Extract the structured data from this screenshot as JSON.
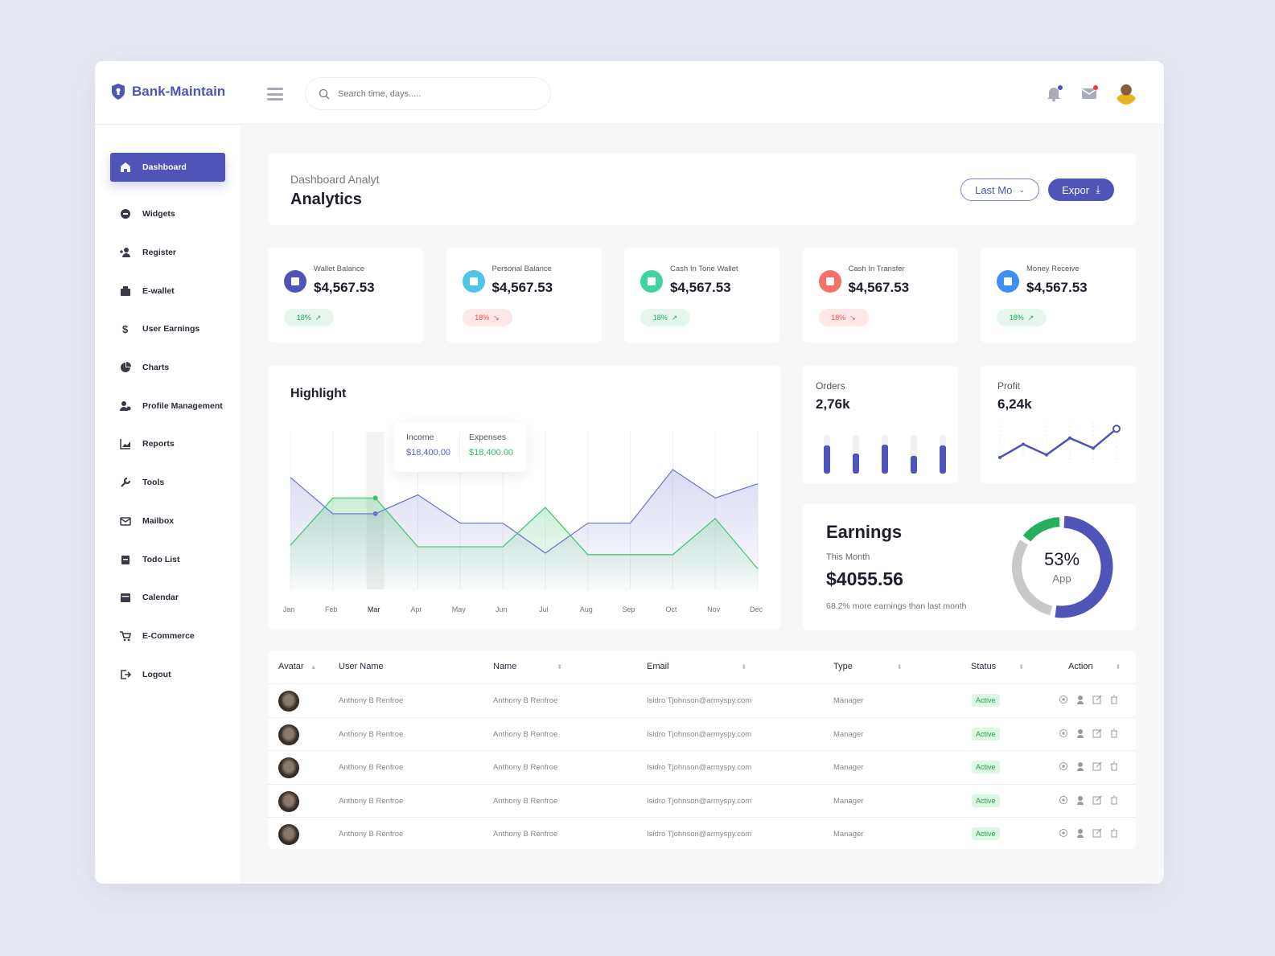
{
  "app": {
    "name": "Bank-Maintain",
    "search_placeholder": "Search time, days....."
  },
  "sidebar": {
    "items": [
      {
        "label": "Dashboard",
        "icon": "home-icon",
        "active": true
      },
      {
        "label": "Widgets",
        "icon": "widgets-icon"
      },
      {
        "label": "Register",
        "icon": "user-plus-icon"
      },
      {
        "label": "E-wallet",
        "icon": "wallet-icon"
      },
      {
        "label": "User Earnings",
        "icon": "dollar-icon"
      },
      {
        "label": "Charts",
        "icon": "pie-chart-icon"
      },
      {
        "label": "Profile Management",
        "icon": "users-icon"
      },
      {
        "label": "Reports",
        "icon": "bar-chart-icon"
      },
      {
        "label": "Tools",
        "icon": "wrench-icon"
      },
      {
        "label": "Mailbox",
        "icon": "mail-icon"
      },
      {
        "label": "Todo List",
        "icon": "clipboard-icon"
      },
      {
        "label": "Calendar",
        "icon": "calendar-icon"
      },
      {
        "label": "E-Commerce",
        "icon": "cart-icon"
      },
      {
        "label": "Logout",
        "icon": "logout-icon"
      }
    ]
  },
  "page": {
    "breadcrumb": "Dashboard Analyt",
    "title": "Analytics",
    "period_label": "Last Mo",
    "export_label": "Expor"
  },
  "stats": [
    {
      "label": "Wallet Balance",
      "value": "$4,567.53",
      "change": "18%",
      "trend": "up",
      "color": "#4e54b8"
    },
    {
      "label": "Personal Balance",
      "value": "$4,567.53",
      "change": "18%",
      "trend": "down",
      "color": "#4fc3e8"
    },
    {
      "label": "Cash In Tone Wallet",
      "value": "$4,567.53",
      "change": "18%",
      "trend": "up",
      "color": "#3fd3a0"
    },
    {
      "label": "Cash In Transfer",
      "value": "$4,567.53",
      "change": "18%",
      "trend": "down",
      "color": "#f7706a"
    },
    {
      "label": "Money Receive",
      "value": "$4,567.53",
      "change": "18%",
      "trend": "up",
      "color": "#3d8ef5"
    }
  ],
  "highlight": {
    "title": "Highlight",
    "tooltip": {
      "income_label": "Income",
      "income_value": "$18,400.00",
      "expenses_label": "Expenses",
      "expenses_value": "$18,400.00",
      "month": "Mar"
    }
  },
  "chart_data": [
    {
      "type": "area",
      "title": "Highlight",
      "categories": [
        "Jan",
        "Feb",
        "Mar",
        "Apr",
        "May",
        "Jun",
        "Jul",
        "Aug",
        "Sep",
        "Oct",
        "Nov",
        "Dec"
      ],
      "series": [
        {
          "name": "Income",
          "color": "#6a6fd0",
          "values": [
            71,
            48,
            48,
            60,
            42,
            42,
            23,
            42,
            42,
            76,
            58,
            67
          ]
        },
        {
          "name": "Expenses",
          "color": "#3cc36a",
          "values": [
            28,
            58,
            58,
            27,
            27,
            27,
            52,
            22,
            22,
            22,
            45,
            13
          ]
        }
      ],
      "ylim": [
        0,
        100
      ],
      "grid": "vertical"
    },
    {
      "type": "bar",
      "title": "Orders",
      "values": [
        0.73,
        0.52,
        0.75,
        0.46,
        0.73
      ],
      "ylim": [
        0,
        1
      ]
    },
    {
      "type": "line",
      "title": "Profit",
      "values": [
        20,
        50,
        26,
        64,
        41,
        85
      ],
      "ylim": [
        0,
        100
      ]
    },
    {
      "type": "pie",
      "title": "Earnings",
      "values": [
        53,
        32,
        15
      ],
      "colors": [
        "#4e54b8",
        "#c9c9c9",
        "#25b05e"
      ]
    }
  ],
  "orders": {
    "label": "Orders",
    "value": "2,76k"
  },
  "profit": {
    "label": "Profit",
    "value": "6,24k"
  },
  "earnings": {
    "title": "Earnings",
    "period": "This Month",
    "value": "$4055.56",
    "note": "68.2% more earnings than last month",
    "percent": "53%",
    "percent_label": "App"
  },
  "table": {
    "headers": [
      "Avatar",
      "User Name",
      "Name",
      "Email",
      "Type",
      "Status",
      "Action"
    ],
    "rows": [
      {
        "username": "Anthony B Renfroe",
        "name": "Anthony B Renfroe",
        "email": "Isidro Tjohnson@armyspy.com",
        "type": "Manager",
        "status": "Active"
      },
      {
        "username": "Anthony B Renfroe",
        "name": "Anthony B Renfroe",
        "email": "Isidro Tjohnson@armyspy.com",
        "type": "Manager",
        "status": "Active"
      },
      {
        "username": "Anthony B Renfroe",
        "name": "Anthony B Renfroe",
        "email": "Isidro Tjohnson@armyspy.com",
        "type": "Manager",
        "status": "Active"
      },
      {
        "username": "Anthony B Renfroe",
        "name": "Anthony B Renfroe",
        "email": "Isidro Tjohnson@armyspy.com",
        "type": "Manager",
        "status": "Active"
      },
      {
        "username": "Anthony B Renfroe",
        "name": "Anthony B Renfroe",
        "email": "Isidro Tjohnson@armyspy.com",
        "type": "Manager",
        "status": "Active"
      }
    ]
  }
}
